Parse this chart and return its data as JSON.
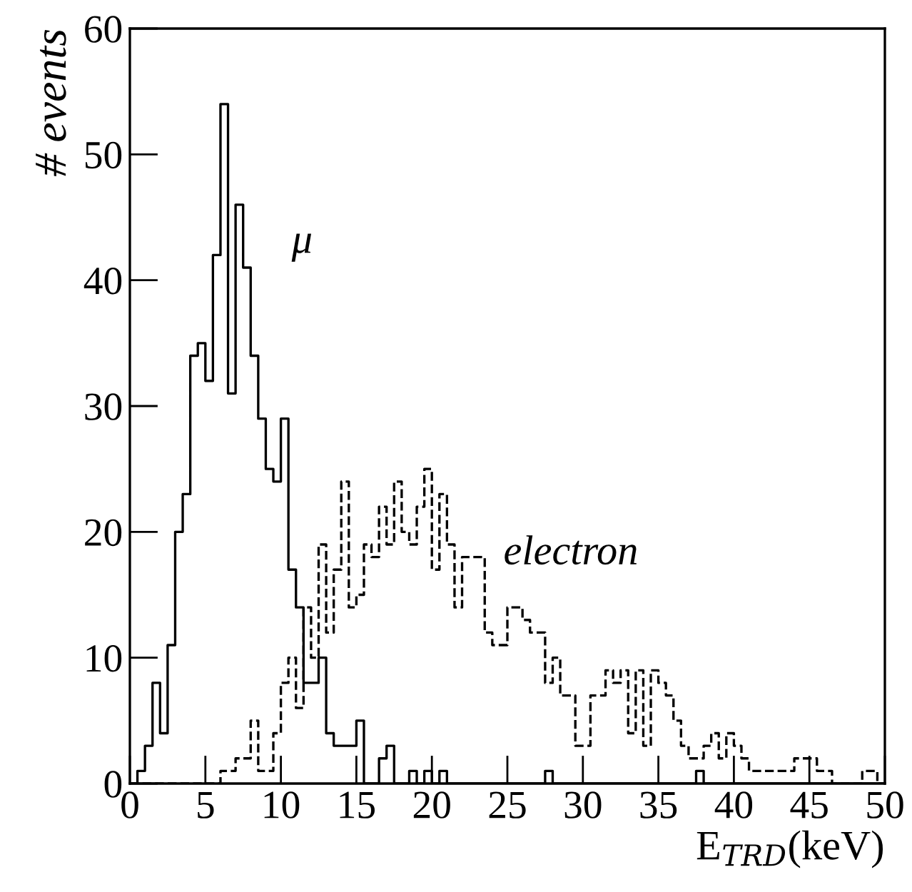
{
  "chart_data": {
    "type": "histogram",
    "xlabel": "E$_{TRD}$(keV)",
    "ylabel": "# events",
    "bins": [
      0,
      0.5,
      1,
      1.5,
      2,
      2.5,
      3,
      3.5,
      4,
      4.5,
      5,
      5.5,
      6,
      6.5,
      7,
      7.5,
      8,
      8.5,
      9,
      9.5,
      10,
      10.5,
      11,
      11.5,
      12,
      12.5,
      13,
      13.5,
      14,
      14.5,
      15,
      15.5,
      16,
      16.5,
      17,
      17.5,
      18,
      18.5,
      19,
      19.5,
      20,
      20.5,
      21,
      21.5,
      22,
      22.5,
      23,
      23.5,
      24,
      24.5,
      25,
      25.5,
      26,
      26.5,
      27,
      27.5,
      28,
      28.5,
      29,
      29.5,
      30,
      30.5,
      31,
      31.5,
      32,
      32.5,
      33,
      33.5,
      34,
      34.5,
      35,
      35.5,
      36,
      36.5,
      37,
      37.5,
      38,
      38.5,
      39,
      39.5,
      40,
      40.5,
      41,
      41.5,
      42,
      42.5,
      43,
      43.5,
      44,
      44.5,
      45,
      45.5,
      46,
      46.5,
      47,
      47.5,
      48,
      48.5,
      49,
      49.5,
      50
    ],
    "series": [
      {
        "name": "μ",
        "color": "#000000",
        "line_style": "solid",
        "values": [
          0,
          1,
          3,
          8,
          4,
          11,
          20,
          23,
          34,
          35,
          32,
          42,
          54,
          31,
          46,
          41,
          34,
          29,
          25,
          24,
          29,
          17,
          14,
          8,
          8,
          10,
          4,
          3,
          3,
          3,
          5,
          0,
          0,
          2,
          3,
          0,
          0,
          1,
          0,
          1,
          0,
          1,
          0,
          0,
          0,
          0,
          0,
          0,
          0,
          0,
          0,
          0,
          0,
          0,
          0,
          1,
          0,
          0,
          0,
          0,
          0,
          0,
          0,
          0,
          0,
          0,
          0,
          0,
          0,
          0,
          0,
          0,
          0,
          0,
          0,
          1,
          0,
          0,
          0,
          0,
          0,
          0,
          0,
          0,
          0,
          0,
          0,
          0,
          0,
          0,
          0,
          0,
          0,
          0,
          0,
          0,
          0,
          0,
          0,
          0
        ]
      },
      {
        "name": "electron",
        "color": "#000000",
        "line_style": "dashed",
        "values": [
          0,
          0,
          0,
          0,
          0,
          0,
          0,
          0,
          0,
          0,
          0,
          0,
          1,
          1,
          2,
          2,
          5,
          1,
          1,
          4,
          8,
          10,
          6,
          14,
          10,
          19,
          12,
          17,
          24,
          14,
          15,
          19,
          18,
          22,
          19,
          24,
          20,
          19,
          22,
          25,
          17,
          23,
          19,
          14,
          18,
          18,
          18,
          12,
          11,
          11,
          14,
          14,
          13,
          12,
          12,
          8,
          10,
          7,
          7,
          3,
          3,
          7,
          7,
          9,
          8,
          9,
          4,
          9,
          3,
          9,
          8,
          7,
          5,
          3,
          2,
          2,
          3,
          4,
          2,
          4,
          3,
          2,
          1,
          1,
          1,
          1,
          1,
          1,
          2,
          2,
          2,
          1,
          1,
          0,
          0,
          0,
          0,
          1,
          1,
          0
        ]
      }
    ],
    "xlim": [
      0,
      50
    ],
    "ylim": [
      0,
      60
    ],
    "xticks": [
      0,
      5,
      10,
      15,
      20,
      25,
      30,
      35,
      40,
      45,
      50
    ],
    "yticks": [
      0,
      10,
      20,
      30,
      40,
      50,
      60
    ],
    "legend": false,
    "grid": false
  }
}
